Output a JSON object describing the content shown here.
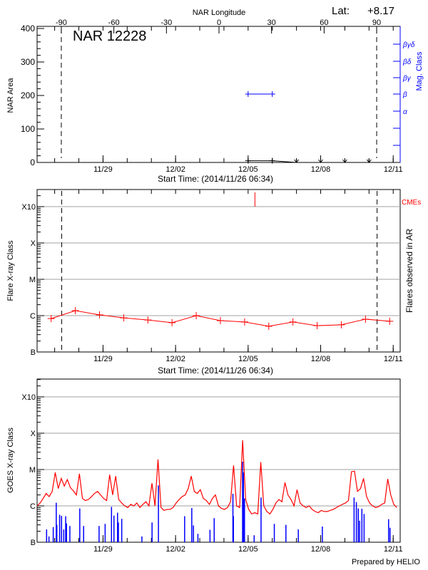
{
  "header": {
    "top_axis_label": "NAR Longitude",
    "latitude_label": "Lat:",
    "latitude_value": "+8.17",
    "region_title": "NAR 12228",
    "footer": "Prepared by HELIO"
  },
  "colors": {
    "flare": "#ff0000",
    "mag_class": "#0000ff",
    "goes": "#ff0000",
    "goes_flares": "#0000ff",
    "grid": "#a0a0a0"
  },
  "chart_data": [
    {
      "type": "line",
      "panel": "top",
      "title": "NAR 12228",
      "ylabel": "NAR Area",
      "ylim": [
        0,
        400
      ],
      "yticks": [
        0,
        100,
        200,
        300,
        400
      ],
      "xlabel": "Start Time: (2014/11/26 06:34)",
      "xlim": [
        "2014-11-26T06:34",
        "2014-12-11T06:34"
      ],
      "xticks": [
        {
          "t": "2014-11-29T00:00",
          "label": "11/29"
        },
        {
          "t": "2014-12-02T00:00",
          "label": "12/02"
        },
        {
          "t": "2014-12-05T00:00",
          "label": "12/05"
        },
        {
          "t": "2014-12-08T00:00",
          "label": "12/08"
        },
        {
          "t": "2014-12-11T00:00",
          "label": "12/11"
        }
      ],
      "top_axis": {
        "label": "NAR Longitude",
        "ticks": [
          -90,
          -60,
          -30,
          0,
          30,
          60,
          90
        ]
      },
      "limb_lines_longitude": [
        -90,
        90
      ],
      "area_series": [
        {
          "t": "2014-12-05T00:00",
          "area": 5
        },
        {
          "t": "2014-12-06T00:00",
          "area": 5
        },
        {
          "t": "2014-12-07T00:00",
          "area": 0
        },
        {
          "t": "2014-12-08T00:00",
          "area": 0
        },
        {
          "t": "2014-12-09T00:00",
          "area": 0
        },
        {
          "t": "2014-12-10T00:00",
          "area": 0
        }
      ],
      "right_axis": {
        "label": "Mag. Class",
        "classes": [
          "βγδ",
          "βδ",
          "βγ",
          "β",
          "α"
        ]
      },
      "mag_class_series": [
        {
          "t": "2014-12-05T00:00",
          "class": "β"
        },
        {
          "t": "2014-12-06T00:00",
          "class": "β"
        }
      ]
    },
    {
      "type": "line",
      "panel": "middle",
      "ylabel": "Flare X-ray Class",
      "right_label": "Flares observed in AR",
      "yscale": "log",
      "ylim": [
        1e-07,
        0.0032
      ],
      "yticks": [
        {
          "v": 1e-07,
          "label": "B"
        },
        {
          "v": 1e-06,
          "label": "C"
        },
        {
          "v": 1e-05,
          "label": "M"
        },
        {
          "v": 0.0001,
          "label": "X"
        },
        {
          "v": 0.001,
          "label": "X10"
        }
      ],
      "xlabel": "Start Time: (2014/11/26 06:34)",
      "limb_lines": [
        "2014-11-27T07:00",
        "2014-12-10T08:00"
      ],
      "flares": [
        {
          "t": "2014-11-26T20:30",
          "v": 8.3e-07
        },
        {
          "t": "2014-11-27T20:30",
          "v": 1.37e-06
        },
        {
          "t": "2014-11-28T20:30",
          "v": 1.05e-06
        },
        {
          "t": "2014-11-29T20:30",
          "v": 8.7e-07
        },
        {
          "t": "2014-11-30T20:30",
          "v": 7.6e-07
        },
        {
          "t": "2014-12-01T20:30",
          "v": 6.4e-07
        },
        {
          "t": "2014-12-02T20:30",
          "v": 1e-06
        },
        {
          "t": "2014-12-03T20:30",
          "v": 7.3e-07
        },
        {
          "t": "2014-12-04T20:30",
          "v": 6.7e-07
        },
        {
          "t": "2014-12-05T20:30",
          "v": 5.1e-07
        },
        {
          "t": "2014-12-06T20:30",
          "v": 6.7e-07
        },
        {
          "t": "2014-12-07T20:30",
          "v": 5.3e-07
        },
        {
          "t": "2014-12-08T20:30",
          "v": 5.6e-07
        },
        {
          "t": "2014-12-09T20:30",
          "v": 8e-07
        },
        {
          "t": "2014-12-10T20:30",
          "v": 7e-07
        }
      ],
      "cme_label": "CMEs",
      "cmes": [
        "2014-12-05T06:45"
      ]
    },
    {
      "type": "line",
      "panel": "bottom",
      "ylabel": "GOES X-ray Class",
      "yscale": "log",
      "ylim": [
        1e-07,
        0.0032
      ],
      "yticks": [
        {
          "v": 1e-07,
          "label": "B"
        },
        {
          "v": 1e-06,
          "label": "C"
        },
        {
          "v": 1e-05,
          "label": "M"
        },
        {
          "v": 0.0001,
          "label": "X"
        },
        {
          "v": 0.001,
          "label": "X10"
        }
      ],
      "goes_flux": {
        "x_start": "2014-11-26T06:34",
        "x_step_hours": 3,
        "values": [
          1e-06,
          1.2e-06,
          1.6e-06,
          2.2e-06,
          1.8e-06,
          2.5e-06,
          8.3e-06,
          3e-06,
          5.7e-06,
          3.5e-06,
          5.3e-06,
          3.2e-06,
          2.6e-06,
          2e-06,
          7.7e-06,
          1.6e-06,
          1.4e-06,
          1.5e-06,
          1.8e-06,
          2.2e-06,
          2.5e-06,
          2e-06,
          1.6e-06,
          1.4e-06,
          7.2e-06,
          2e-06,
          6.6e-06,
          1.5e-06,
          1.2e-06,
          1e-06,
          9e-07,
          1.1e-06,
          1e-06,
          1.2e-06,
          9e-07,
          1.1e-06,
          1.3e-06,
          1e-06,
          4.2e-06,
          1e-06,
          1.9e-05,
          9e-07,
          7.5e-07,
          8e-07,
          8e-07,
          9e-07,
          1.2e-06,
          1.5e-06,
          1.8e-06,
          2e-06,
          3e-06,
          6.6e-06,
          2.5e-06,
          2.2e-06,
          2.8e-06,
          1.6e-06,
          1.4e-06,
          1.1e-06,
          1.6e-06,
          2e-06,
          1e-06,
          8.5e-07,
          8e-07,
          9e-07,
          1.3e-06,
          1.3e-05,
          1e-06,
          9e-07,
          6.4e-05,
          1.5e-06,
          8e-07,
          6e-07,
          6.5e-07,
          6e-07,
          1.6e-05,
          1e-06,
          7e-07,
          6e-07,
          8e-07,
          1.2e-06,
          1.5e-06,
          1.3e-06,
          4.4e-06,
          2e-06,
          1.5e-06,
          1e-06,
          2.8e-06,
          1.2e-06,
          1e-06,
          9e-07,
          1e-06,
          8e-07,
          7e-07,
          6.5e-07,
          7.5e-07,
          7e-07,
          7e-07,
          7.5e-07,
          8e-07,
          9e-07,
          1e-06,
          1.1e-06,
          1.2e-06,
          1.4e-06,
          8.7e-06,
          9e-06,
          2.5e-06,
          3e-06,
          5.7e-06,
          1.8e-06,
          1.2e-06,
          1e-06,
          9e-07,
          9.5e-07,
          1.1e-06,
          1.2e-06,
          5.5e-06,
          2e-06,
          1.1e-06,
          9e-07
        ]
      },
      "flare_events": [
        {
          "t": "2014-11-26T16:00",
          "v": 2.25e-07
        },
        {
          "t": "2014-11-26T18:20",
          "v": 1.44e-07
        },
        {
          "t": "2014-11-26T22:35",
          "v": 2.6e-07
        },
        {
          "t": "2014-11-27T01:35",
          "v": 1.22e-06
        },
        {
          "t": "2014-11-27T02:10",
          "v": 3e-07
        },
        {
          "t": "2014-11-27T04:55",
          "v": 5.7e-07
        },
        {
          "t": "2014-11-27T06:50",
          "v": 5.3e-07
        },
        {
          "t": "2014-11-27T09:00",
          "v": 2.25e-07
        },
        {
          "t": "2014-11-27T10:55",
          "v": 5.2e-07
        },
        {
          "t": "2014-11-27T11:45",
          "v": 3.3e-07
        },
        {
          "t": "2014-11-27T15:05",
          "v": 2.8e-07
        },
        {
          "t": "2014-11-28T00:55",
          "v": 8.5e-07
        },
        {
          "t": "2014-11-28T04:45",
          "v": 2.8e-07
        },
        {
          "t": "2014-11-28T20:05",
          "v": 2.8e-07
        },
        {
          "t": "2014-11-29T02:05",
          "v": 3.2e-07
        },
        {
          "t": "2014-11-29T08:25",
          "v": 9.4e-07
        },
        {
          "t": "2014-11-29T10:50",
          "v": 5.4e-07
        },
        {
          "t": "2014-11-29T14:25",
          "v": 6.5e-07
        },
        {
          "t": "2014-11-29T15:15",
          "v": 3.5e-07
        },
        {
          "t": "2014-11-29T18:35",
          "v": 4.4e-07
        },
        {
          "t": "2014-11-30T14:35",
          "v": 1.44e-07
        },
        {
          "t": "2014-12-01T00:40",
          "v": 3.5e-07
        },
        {
          "t": "2014-12-01T07:00",
          "v": 3.65e-06
        },
        {
          "t": "2014-12-02T09:00",
          "v": 5.2e-07
        },
        {
          "t": "2014-12-02T16:05",
          "v": 8.7e-07
        },
        {
          "t": "2014-12-02T17:45",
          "v": 2.9e-07
        },
        {
          "t": "2014-12-02T22:10",
          "v": 1.7e-07
        },
        {
          "t": "2014-12-03T10:10",
          "v": 2.2e-07
        },
        {
          "t": "2014-12-03T14:20",
          "v": 4.6e-07
        },
        {
          "t": "2014-12-04T08:55",
          "v": 2.15e-06
        },
        {
          "t": "2014-12-04T09:25",
          "v": 5.2e-07
        },
        {
          "t": "2014-12-04T18:30",
          "v": 1.64e-05
        },
        {
          "t": "2014-12-04T19:20",
          "v": 8.3e-06
        },
        {
          "t": "2014-12-04T20:25",
          "v": 1.6e-06
        },
        {
          "t": "2014-12-05T06:00",
          "v": 1.55e-07
        },
        {
          "t": "2014-12-05T12:50",
          "v": 1.7e-06
        },
        {
          "t": "2014-12-06T02:00",
          "v": 3.2e-07
        },
        {
          "t": "2014-12-06T13:30",
          "v": 3e-07
        },
        {
          "t": "2014-12-07T01:50",
          "v": 2.25e-07
        },
        {
          "t": "2014-12-08T01:40",
          "v": 2.7e-07
        },
        {
          "t": "2014-12-09T09:10",
          "v": 1.7e-06
        },
        {
          "t": "2014-12-09T11:25",
          "v": 1.27e-06
        },
        {
          "t": "2014-12-09T13:20",
          "v": 8.5e-07
        },
        {
          "t": "2014-12-09T14:40",
          "v": 3.9e-07
        },
        {
          "t": "2014-12-09T16:55",
          "v": 8.3e-07
        },
        {
          "t": "2014-12-09T19:05",
          "v": 6e-07
        },
        {
          "t": "2014-12-10T19:25",
          "v": 4.3e-07
        },
        {
          "t": "2014-12-10T20:50",
          "v": 2.5e-07
        }
      ]
    }
  ]
}
